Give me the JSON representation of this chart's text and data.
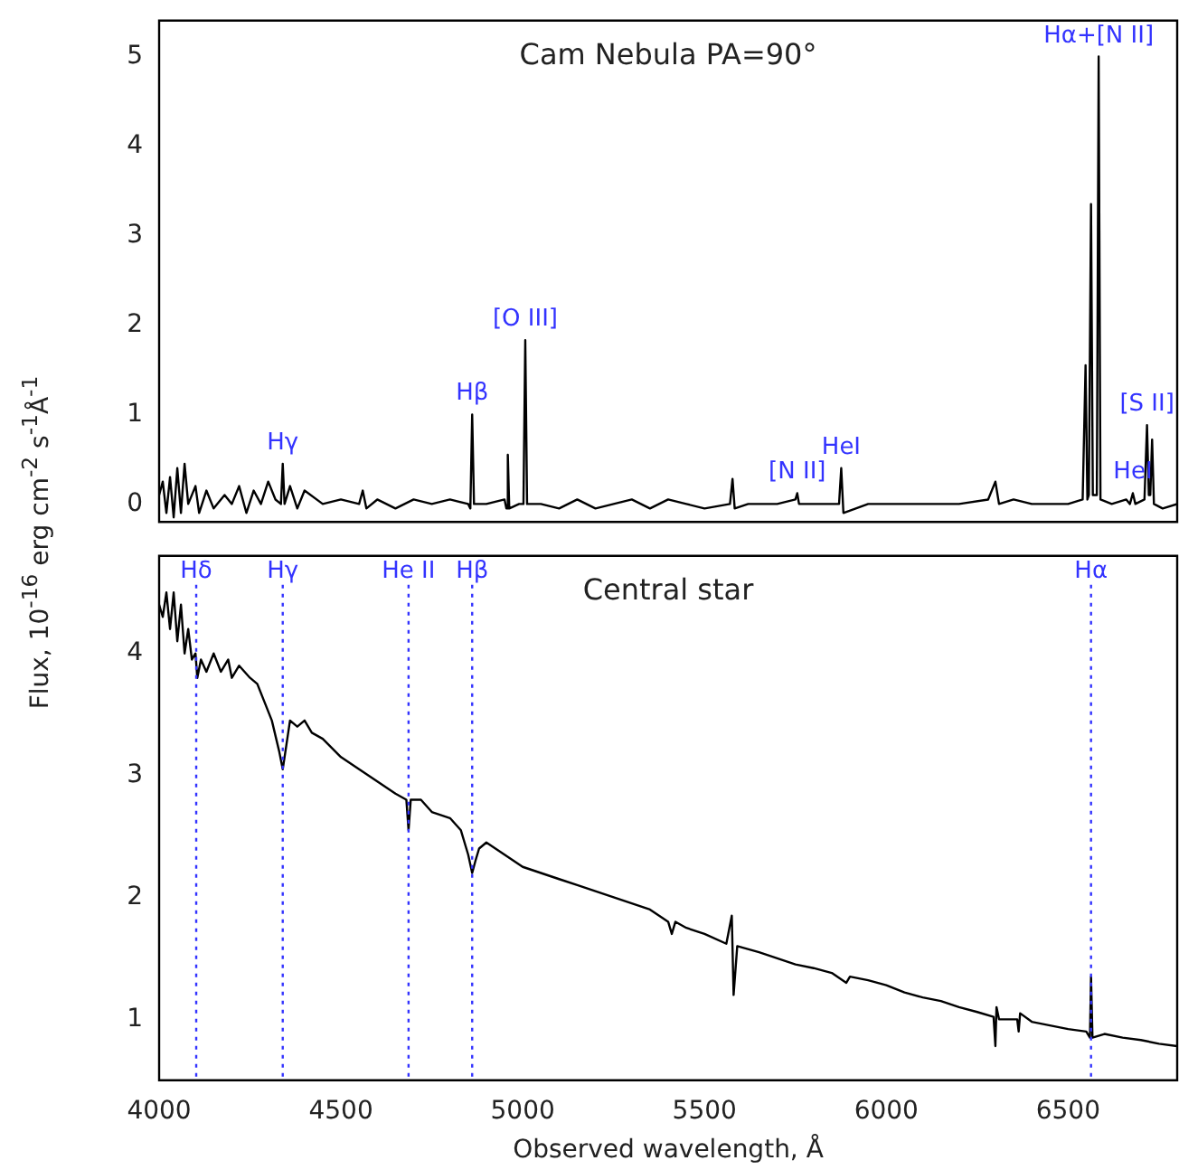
{
  "chart_data": [
    {
      "type": "line",
      "title": "Cam Nebula PA=90°",
      "ylabel": "Flux, 10$^{-16}$ erg cm$^{-2}$ s$^{-1}$Å$^{-1}$",
      "xlim": [
        4000,
        6800
      ],
      "xticks": [
        4000,
        4500,
        5000,
        5500,
        6000,
        6500
      ],
      "ylim": [
        -0.2,
        5.4
      ],
      "yticks": [
        0,
        1,
        2,
        3,
        4,
        5
      ],
      "tick_labels": "y",
      "x": [
        4000,
        4010,
        4020,
        4030,
        4040,
        4050,
        4060,
        4070,
        4080,
        4100,
        4110,
        4130,
        4150,
        4180,
        4200,
        4220,
        4240,
        4260,
        4280,
        4300,
        4320,
        4335,
        4340,
        4345,
        4360,
        4380,
        4400,
        4450,
        4500,
        4550,
        4560,
        4570,
        4600,
        4650,
        4700,
        4750,
        4800,
        4850,
        4856,
        4861,
        4866,
        4900,
        4950,
        4955,
        4959,
        4963,
        4990,
        5002,
        5007,
        5012,
        5050,
        5100,
        5150,
        5200,
        5250,
        5300,
        5350,
        5400,
        5450,
        5500,
        5570,
        5577,
        5583,
        5620,
        5700,
        5750,
        5755,
        5760,
        5820,
        5870,
        5876,
        5882,
        5950,
        6000,
        6100,
        6200,
        6280,
        6300,
        6310,
        6350,
        6400,
        6500,
        6540,
        6548,
        6553,
        6557,
        6563,
        6568,
        6579,
        6584,
        6589,
        6620,
        6660,
        6670,
        6678,
        6685,
        6710,
        6717,
        6722,
        6726,
        6731,
        6736,
        6760,
        6800
      ],
      "series": [
        {
          "color": "#000000",
          "values": [
            0.1,
            0.25,
            -0.1,
            0.3,
            -0.15,
            0.4,
            -0.1,
            0.45,
            0.0,
            0.2,
            -0.1,
            0.15,
            -0.05,
            0.1,
            0.0,
            0.2,
            -0.1,
            0.15,
            0.0,
            0.25,
            0.05,
            0.0,
            0.45,
            0.0,
            0.2,
            -0.05,
            0.15,
            0.0,
            0.05,
            0.0,
            0.15,
            -0.05,
            0.05,
            -0.05,
            0.05,
            0.0,
            0.05,
            0.0,
            -0.05,
            1.0,
            0.0,
            0.0,
            0.05,
            -0.05,
            0.55,
            -0.05,
            0.0,
            0.0,
            1.83,
            0.0,
            0.0,
            -0.05,
            0.05,
            -0.05,
            0.0,
            0.05,
            -0.05,
            0.05,
            0.0,
            -0.05,
            0.0,
            0.28,
            -0.05,
            0.0,
            0.0,
            0.05,
            0.12,
            0.0,
            0.0,
            0.0,
            0.4,
            -0.1,
            0.0,
            0.0,
            0.0,
            0.0,
            0.05,
            0.25,
            0.0,
            0.05,
            0.0,
            0.0,
            0.05,
            1.55,
            0.05,
            0.1,
            3.35,
            0.1,
            0.1,
            5.0,
            0.05,
            0.0,
            0.05,
            0.0,
            0.12,
            0.0,
            0.05,
            0.88,
            0.1,
            0.1,
            0.72,
            0.0,
            -0.05,
            0.0
          ]
        }
      ],
      "annotations": [
        {
          "text": "Hγ",
          "x": 4340,
          "y": 0.45
        },
        {
          "text": "Hβ",
          "x": 4861,
          "y": 1.0
        },
        {
          "text": "[O III]",
          "x": 5007,
          "y": 1.83
        },
        {
          "text": "[N II]",
          "x": 5755,
          "y": 0.12
        },
        {
          "text": "HeI",
          "x": 5876,
          "y": 0.4
        },
        {
          "text": "Hα+[N II]",
          "x": 6584,
          "y": 5.0
        },
        {
          "text": "[S II]",
          "x": 6717,
          "y": 0.88
        },
        {
          "text": "HeI",
          "x": 6678,
          "y": 0.12
        }
      ]
    },
    {
      "type": "line",
      "title": "Central star",
      "xlabel": "Observed wavelength, Å",
      "xlim": [
        4000,
        6800
      ],
      "xticks": [
        4000,
        4500,
        5000,
        5500,
        6000,
        6500
      ],
      "ylim": [
        0.5,
        4.8
      ],
      "yticks": [
        1,
        2,
        3,
        4
      ],
      "x": [
        4000,
        4010,
        4020,
        4030,
        4040,
        4050,
        4060,
        4070,
        4080,
        4090,
        4100,
        4105,
        4115,
        4130,
        4150,
        4170,
        4190,
        4200,
        4220,
        4250,
        4270,
        4290,
        4310,
        4330,
        4340,
        4350,
        4360,
        4380,
        4400,
        4420,
        4450,
        4500,
        4550,
        4600,
        4650,
        4680,
        4686,
        4692,
        4720,
        4750,
        4800,
        4830,
        4850,
        4861,
        4870,
        4880,
        4900,
        4950,
        5000,
        5050,
        5100,
        5150,
        5200,
        5250,
        5300,
        5350,
        5400,
        5410,
        5420,
        5450,
        5500,
        5560,
        5575,
        5580,
        5590,
        5650,
        5700,
        5750,
        5800,
        5850,
        5890,
        5900,
        5950,
        6000,
        6050,
        6100,
        6150,
        6200,
        6250,
        6295,
        6300,
        6303,
        6310,
        6360,
        6364,
        6368,
        6400,
        6450,
        6500,
        6550,
        6560,
        6563,
        6567,
        6600,
        6650,
        6700,
        6750,
        6800
      ],
      "series": [
        {
          "color": "#000000",
          "values": [
            4.4,
            4.3,
            4.5,
            4.2,
            4.5,
            4.1,
            4.4,
            4.0,
            4.2,
            3.95,
            4.0,
            3.8,
            3.95,
            3.85,
            4.0,
            3.85,
            3.95,
            3.8,
            3.9,
            3.8,
            3.75,
            3.6,
            3.45,
            3.2,
            3.05,
            3.25,
            3.45,
            3.4,
            3.45,
            3.35,
            3.3,
            3.15,
            3.05,
            2.95,
            2.85,
            2.8,
            2.55,
            2.8,
            2.8,
            2.7,
            2.65,
            2.55,
            2.35,
            2.2,
            2.3,
            2.4,
            2.45,
            2.35,
            2.25,
            2.2,
            2.15,
            2.1,
            2.05,
            2.0,
            1.95,
            1.9,
            1.8,
            1.7,
            1.8,
            1.75,
            1.7,
            1.62,
            1.85,
            1.2,
            1.6,
            1.55,
            1.5,
            1.45,
            1.42,
            1.38,
            1.3,
            1.35,
            1.32,
            1.28,
            1.22,
            1.18,
            1.15,
            1.1,
            1.06,
            1.02,
            0.78,
            1.1,
            1.0,
            1.0,
            0.9,
            1.05,
            0.98,
            0.95,
            0.92,
            0.9,
            0.85,
            1.35,
            0.85,
            0.88,
            0.85,
            0.83,
            0.8,
            0.78
          ]
        }
      ],
      "ref_lines": [
        {
          "axis": "x",
          "value": 4102,
          "label": "Hδ",
          "color": "#3333ff",
          "line_style": "dotted"
        },
        {
          "axis": "x",
          "value": 4340,
          "label": "Hγ",
          "color": "#3333ff",
          "line_style": "dotted"
        },
        {
          "axis": "x",
          "value": 4686,
          "label": "He II",
          "color": "#3333ff",
          "line_style": "dotted"
        },
        {
          "axis": "x",
          "value": 4861,
          "label": "Hβ",
          "color": "#3333ff",
          "line_style": "dotted"
        },
        {
          "axis": "x",
          "value": 6563,
          "label": "Hα",
          "color": "#3333ff",
          "line_style": "dotted"
        }
      ]
    }
  ]
}
